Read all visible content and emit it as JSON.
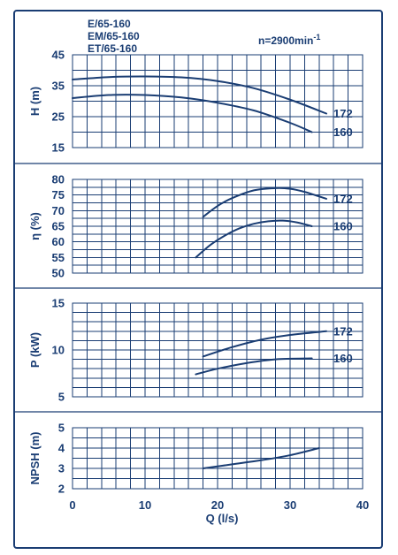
{
  "header": {
    "models": [
      "E/65-160",
      "EM/65-160",
      "ET/65-160"
    ],
    "speed_label": "n=2900min",
    "speed_sup": "-1"
  },
  "colors": {
    "ink": "#1a3d73",
    "background": "#ffffff"
  },
  "chart_data": [
    {
      "type": "line",
      "title": "",
      "xlabel": "",
      "ylabel": "H (m)",
      "xlim": [
        0,
        40
      ],
      "ylim": [
        15,
        45
      ],
      "yticks": [
        "15",
        "25",
        "35",
        "45"
      ],
      "grid": true,
      "series": [
        {
          "name": "172",
          "x": [
            0,
            5,
            10,
            15,
            20,
            25,
            30,
            35
          ],
          "values": [
            37,
            37.8,
            38,
            37.7,
            36.5,
            34.2,
            30.5,
            26
          ]
        },
        {
          "name": "160",
          "x": [
            0,
            5,
            10,
            15,
            20,
            25,
            30,
            33
          ],
          "values": [
            31,
            32,
            32,
            31.2,
            29.5,
            27,
            23,
            20
          ]
        }
      ]
    },
    {
      "type": "line",
      "title": "",
      "xlabel": "",
      "ylabel": "η (%)",
      "xlim": [
        0,
        40
      ],
      "ylim": [
        50,
        80
      ],
      "yticks": [
        "50",
        "55",
        "60",
        "65",
        "70",
        "75",
        "80"
      ],
      "grid": true,
      "series": [
        {
          "name": "172",
          "x": [
            18,
            20,
            22,
            25,
            28,
            30,
            32,
            35
          ],
          "values": [
            68,
            71.5,
            74,
            76.5,
            77.2,
            77,
            76,
            73.8
          ]
        },
        {
          "name": "160",
          "x": [
            17,
            19,
            21,
            23,
            25,
            27,
            29,
            31,
            33
          ],
          "values": [
            55,
            59,
            62,
            64.3,
            65.8,
            66.6,
            66.8,
            66.2,
            65
          ]
        }
      ]
    },
    {
      "type": "line",
      "title": "",
      "xlabel": "",
      "ylabel": "P (kW)",
      "xlim": [
        0,
        40
      ],
      "ylim": [
        5,
        15
      ],
      "yticks": [
        "5",
        "10",
        "15"
      ],
      "grid": true,
      "series": [
        {
          "name": "172",
          "x": [
            18,
            22,
            26,
            30,
            35
          ],
          "values": [
            9.3,
            10.3,
            11.1,
            11.6,
            12.0
          ]
        },
        {
          "name": "160",
          "x": [
            17,
            20,
            24,
            28,
            33
          ],
          "values": [
            7.4,
            8.0,
            8.6,
            9.0,
            9.1
          ]
        }
      ]
    },
    {
      "type": "line",
      "title": "",
      "xlabel": "Q (l/s)",
      "ylabel": "NPSH (m)",
      "xlim": [
        0,
        40
      ],
      "ylim": [
        2,
        5
      ],
      "xticks": [
        "0",
        "10",
        "20",
        "30",
        "40"
      ],
      "yticks": [
        "2",
        "3",
        "4",
        "5"
      ],
      "grid": true,
      "series": [
        {
          "x": [
            18,
            22,
            26,
            30,
            34
          ],
          "values": [
            3.0,
            3.2,
            3.4,
            3.65,
            4.0
          ]
        }
      ]
    }
  ]
}
